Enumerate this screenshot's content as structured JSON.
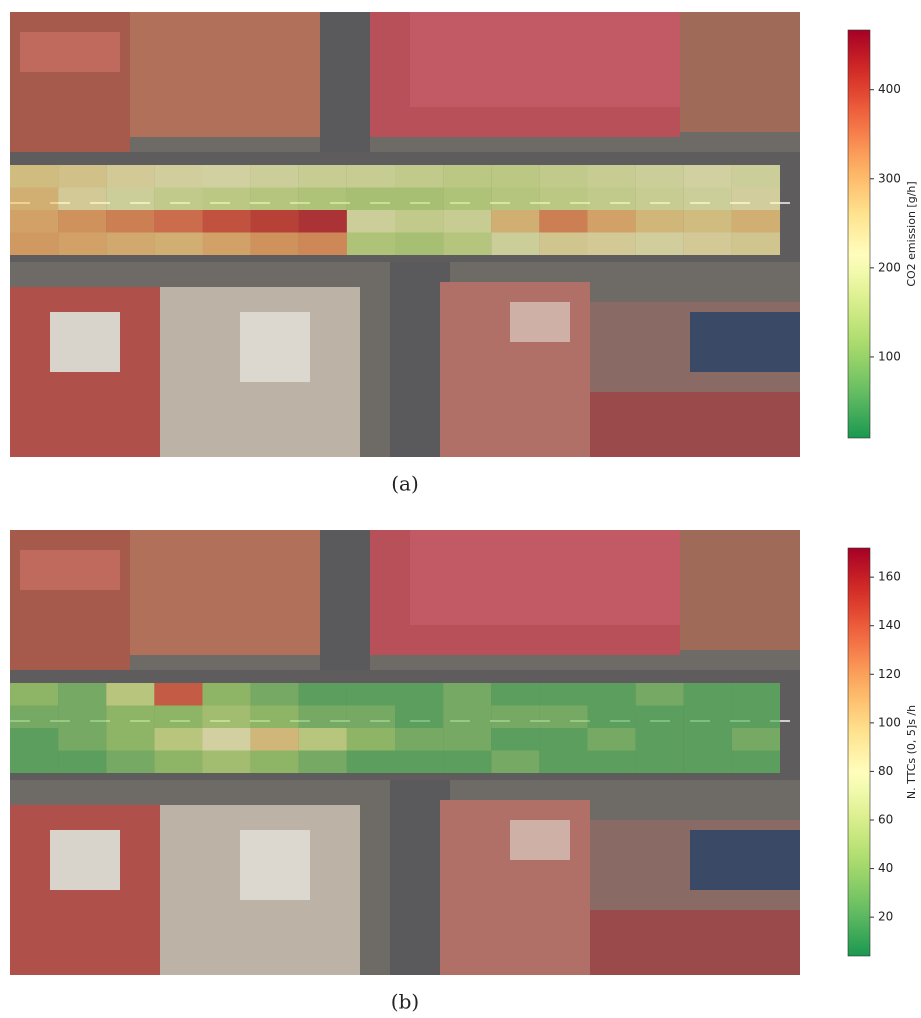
{
  "chart_data": [
    {
      "type": "heatmap",
      "panel_label": "(a)",
      "colorbar_label": "CO2 emission [g/h]",
      "colormap": "RdYlGn_r",
      "clim": [
        9,
        467
      ],
      "cticks": [
        100,
        200,
        300,
        400
      ],
      "z": [
        [
          260,
          250,
          230,
          220,
          210,
          200,
          190,
          190,
          180,
          170,
          170,
          180,
          190,
          200,
          210,
          200
        ],
        [
          280,
          230,
          200,
          180,
          170,
          160,
          150,
          140,
          140,
          150,
          160,
          170,
          180,
          190,
          200,
          220
        ],
        [
          300,
          320,
          340,
          360,
          390,
          410,
          430,
          200,
          180,
          190,
          280,
          340,
          300,
          270,
          260,
          280
        ],
        [
          310,
          300,
          290,
          280,
          300,
          320,
          330,
          150,
          140,
          160,
          200,
          240,
          230,
          220,
          230,
          240
        ]
      ]
    },
    {
      "type": "heatmap",
      "panel_label": "(b)",
      "colorbar_label": "N. TTCs (0, 5]s /h",
      "colormap": "RdYlGn_r",
      "clim": [
        4,
        172
      ],
      "cticks": [
        20,
        40,
        60,
        80,
        100,
        120,
        140,
        160
      ],
      "z": [
        [
          40,
          30,
          60,
          140,
          40,
          30,
          20,
          20,
          20,
          30,
          20,
          20,
          20,
          30,
          20,
          20
        ],
        [
          30,
          30,
          40,
          40,
          50,
          40,
          30,
          30,
          20,
          30,
          30,
          30,
          20,
          20,
          20,
          20
        ],
        [
          20,
          30,
          40,
          60,
          80,
          100,
          60,
          40,
          30,
          30,
          20,
          20,
          30,
          20,
          20,
          30
        ],
        [
          20,
          20,
          30,
          40,
          50,
          40,
          30,
          20,
          20,
          20,
          30,
          20,
          20,
          20,
          20,
          20
        ]
      ]
    }
  ]
}
